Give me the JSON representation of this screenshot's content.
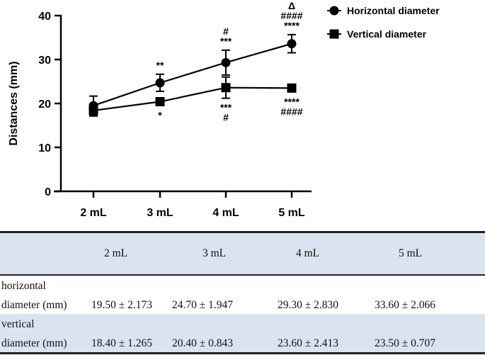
{
  "chart_data": {
    "type": "line",
    "categories": [
      "2 mL",
      "3 mL",
      "4 mL",
      "5 mL"
    ],
    "ylabel": "Distances (mm)",
    "xlabel": "",
    "ylim": [
      0,
      40
    ],
    "yticks": [
      "0",
      "10",
      "20",
      "30",
      "40"
    ],
    "legend_position": "top-right",
    "series": [
      {
        "name": "Horizontal diameter",
        "marker": "circle",
        "values": [
          19.5,
          24.7,
          29.3,
          33.6
        ],
        "errors": [
          2.173,
          1.947,
          2.83,
          2.066
        ],
        "annotations": [
          [],
          [
            "**"
          ],
          [
            "#",
            "***"
          ],
          [
            "Δ",
            "####",
            "****"
          ]
        ]
      },
      {
        "name": "Vertical diameter",
        "marker": "square",
        "values": [
          18.4,
          20.4,
          23.6,
          23.5
        ],
        "errors": [
          1.265,
          0.843,
          2.413,
          0.707
        ],
        "annotations": [
          [],
          [
            "*"
          ],
          [
            "***",
            "#"
          ],
          [
            "****",
            "####"
          ]
        ]
      }
    ]
  },
  "table": {
    "headers": [
      "",
      "2 mL",
      "3 mL",
      "4 mL",
      "5 mL"
    ],
    "rows": [
      {
        "label1": "horizontal",
        "label2": "diameter (mm)",
        "values": [
          "19.50 ± 2.173",
          "24.70 ± 1.947",
          "29.30 ± 2.830",
          "33.60 ± 2.066"
        ]
      },
      {
        "label1": "vertical",
        "label2": "diameter (mm)",
        "values": [
          "18.40 ± 1.265",
          "20.40 ± 0.843",
          "23.60 ± 2.413",
          "23.50 ± 0.707"
        ]
      }
    ]
  }
}
